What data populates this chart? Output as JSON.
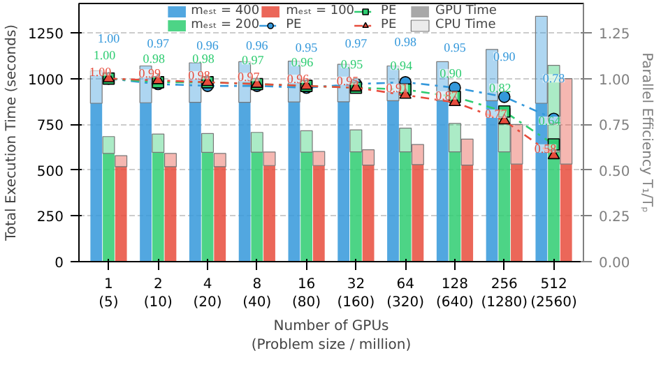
{
  "chart_data": {
    "type": "bar",
    "grid": "y",
    "legend": "top",
    "xlabel": "Number of GPUs\n(Problem size / million)",
    "ylabel": "Total Execution Time (seconds)",
    "y2label": "Parallel Efficiency T₁/Tₚ",
    "categories": [
      "1\n(5)",
      "2\n(10)",
      "4\n(20)",
      "8\n(40)",
      "16\n(80)",
      "32\n(160)",
      "64\n(320)",
      "128\n(640)",
      "256\n(1280)",
      "512\n(2560)"
    ],
    "ylim": [
      0,
      1410
    ],
    "yticks": [
      0,
      250,
      500,
      750,
      1000,
      1250
    ],
    "y2lim": [
      0,
      1.41
    ],
    "y2ticks": [
      {
        "value": 0,
        "label": "0.00"
      },
      {
        "value": 0.25,
        "label": "0.25"
      },
      {
        "value": 0.5,
        "label": "0.50"
      },
      {
        "value": 0.75,
        "label": "0.75"
      },
      {
        "value": 1,
        "label": "1.00"
      },
      {
        "value": 1.25,
        "label": "1.25"
      }
    ],
    "series": [
      {
        "name": "mₑₛₜ = 400",
        "color": "#3498db",
        "values": [
          865,
          868,
          870,
          870,
          872,
          873,
          879,
          879,
          879,
          865
        ]
      },
      {
        "name": "mₑₛₜ = 200",
        "color": "#2ecc71",
        "values": [
          591,
          597,
          597,
          598,
          598,
          600,
          600,
          600,
          600,
          600
        ]
      },
      {
        "name": "mₑₛₜ = 100",
        "color": "#e74c3c",
        "values": [
          519,
          519,
          519,
          525,
          525,
          527,
          530,
          527,
          533,
          533
        ]
      },
      {
        "color": "#3498db",
        "base": [
          865,
          868,
          870,
          870,
          872,
          873,
          879,
          879,
          879,
          865
        ],
        "values": [
          178,
          201,
          216,
          222,
          223,
          205,
          190,
          213,
          280,
          475
        ]
      },
      {
        "color": "#2ecc71",
        "base": [
          591,
          597,
          597,
          598,
          598,
          600,
          600,
          600,
          600,
          600
        ],
        "values": [
          92,
          100,
          103,
          108,
          117,
          120,
          129,
          155,
          236,
          472
        ]
      },
      {
        "color": "#e74c3c",
        "base": [
          519,
          519,
          519,
          525,
          525,
          527,
          530,
          527,
          533,
          533
        ],
        "values": [
          60,
          72,
          72,
          74,
          77,
          84,
          110,
          142,
          216,
          467
        ]
      },
      {
        "type": "line",
        "axis": "y2",
        "name": "PE",
        "color": "#3498db",
        "marker": "circle",
        "line_style": "dashdot",
        "values": [
          1.0,
          0.97,
          0.96,
          0.96,
          0.95,
          0.97,
          0.98,
          0.95,
          0.9,
          0.78
        ],
        "value_labels": [
          "1.00",
          "0.97",
          "0.96",
          "0.96",
          "0.95",
          "0.97",
          "0.98",
          "0.95",
          "0.90",
          "0.78"
        ]
      },
      {
        "type": "line",
        "axis": "y2",
        "name": "PE",
        "color": "#2ecc71",
        "marker": "square",
        "line_style": "dashdot",
        "values": [
          1.0,
          0.98,
          0.98,
          0.97,
          0.96,
          0.95,
          0.94,
          0.9,
          0.82,
          0.64
        ],
        "value_labels": [
          "1.00",
          "0.98",
          "0.98",
          "0.97",
          "0.96",
          "0.95",
          "0.94",
          "0.90",
          "0.82",
          "0.64"
        ]
      },
      {
        "type": "line",
        "axis": "y2",
        "name": "PE",
        "color": "#e74c3c",
        "marker": "triangle",
        "line_style": "dashdot",
        "values": [
          1.0,
          0.99,
          0.98,
          0.97,
          0.96,
          0.95,
          0.91,
          0.87,
          0.77,
          0.58
        ],
        "value_labels": [
          "1.00",
          "0.99",
          "0.98",
          "0.97",
          "0.96",
          "0.95",
          "0.91",
          "0.87",
          "0.77",
          "0.58"
        ]
      },
      {
        "name": "GPU Time",
        "color": "#999999",
        "values": [
          null,
          null,
          null,
          null,
          null,
          null,
          null,
          null,
          null,
          null
        ]
      },
      {
        "name": "CPU Time",
        "color": "#cccccc",
        "base": [
          null,
          null,
          null,
          null,
          null,
          null,
          null,
          null,
          null,
          null
        ],
        "values": [
          null,
          null,
          null,
          null,
          null,
          null,
          null,
          null,
          null,
          null
        ]
      }
    ]
  }
}
